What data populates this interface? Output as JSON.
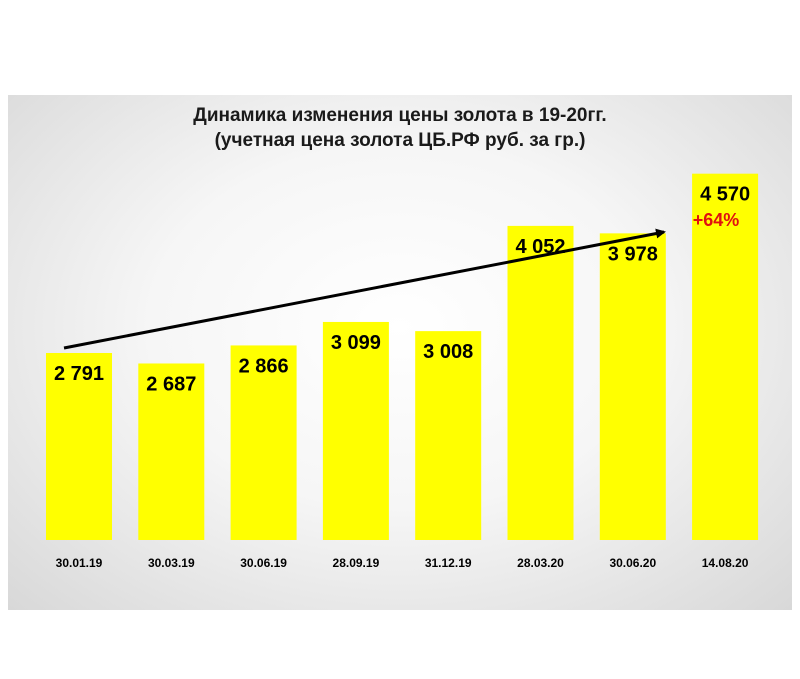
{
  "chart_data": {
    "type": "bar",
    "title": "Динамика изменения цены золота в 19-20гг.",
    "subtitle": "(учетная цена золота  ЦБ.РФ руб. за гр.)",
    "categories": [
      "30.01.19",
      "30.03.19",
      "30.06.19",
      "28.09.19",
      "31.12.19",
      "28.03.20",
      "30.06.20",
      "14.08.20"
    ],
    "values": [
      2791,
      2687,
      2866,
      3099,
      3008,
      4052,
      3978,
      4570
    ],
    "value_labels": [
      "2 791",
      "2 687",
      "2 866",
      "3 099",
      "3 008",
      "4 052",
      "3 978",
      "4 570"
    ],
    "bar_color": "#ffff00",
    "annotation": {
      "text": "+64%",
      "color": "#e01010"
    },
    "grid": false,
    "legend": "none"
  }
}
